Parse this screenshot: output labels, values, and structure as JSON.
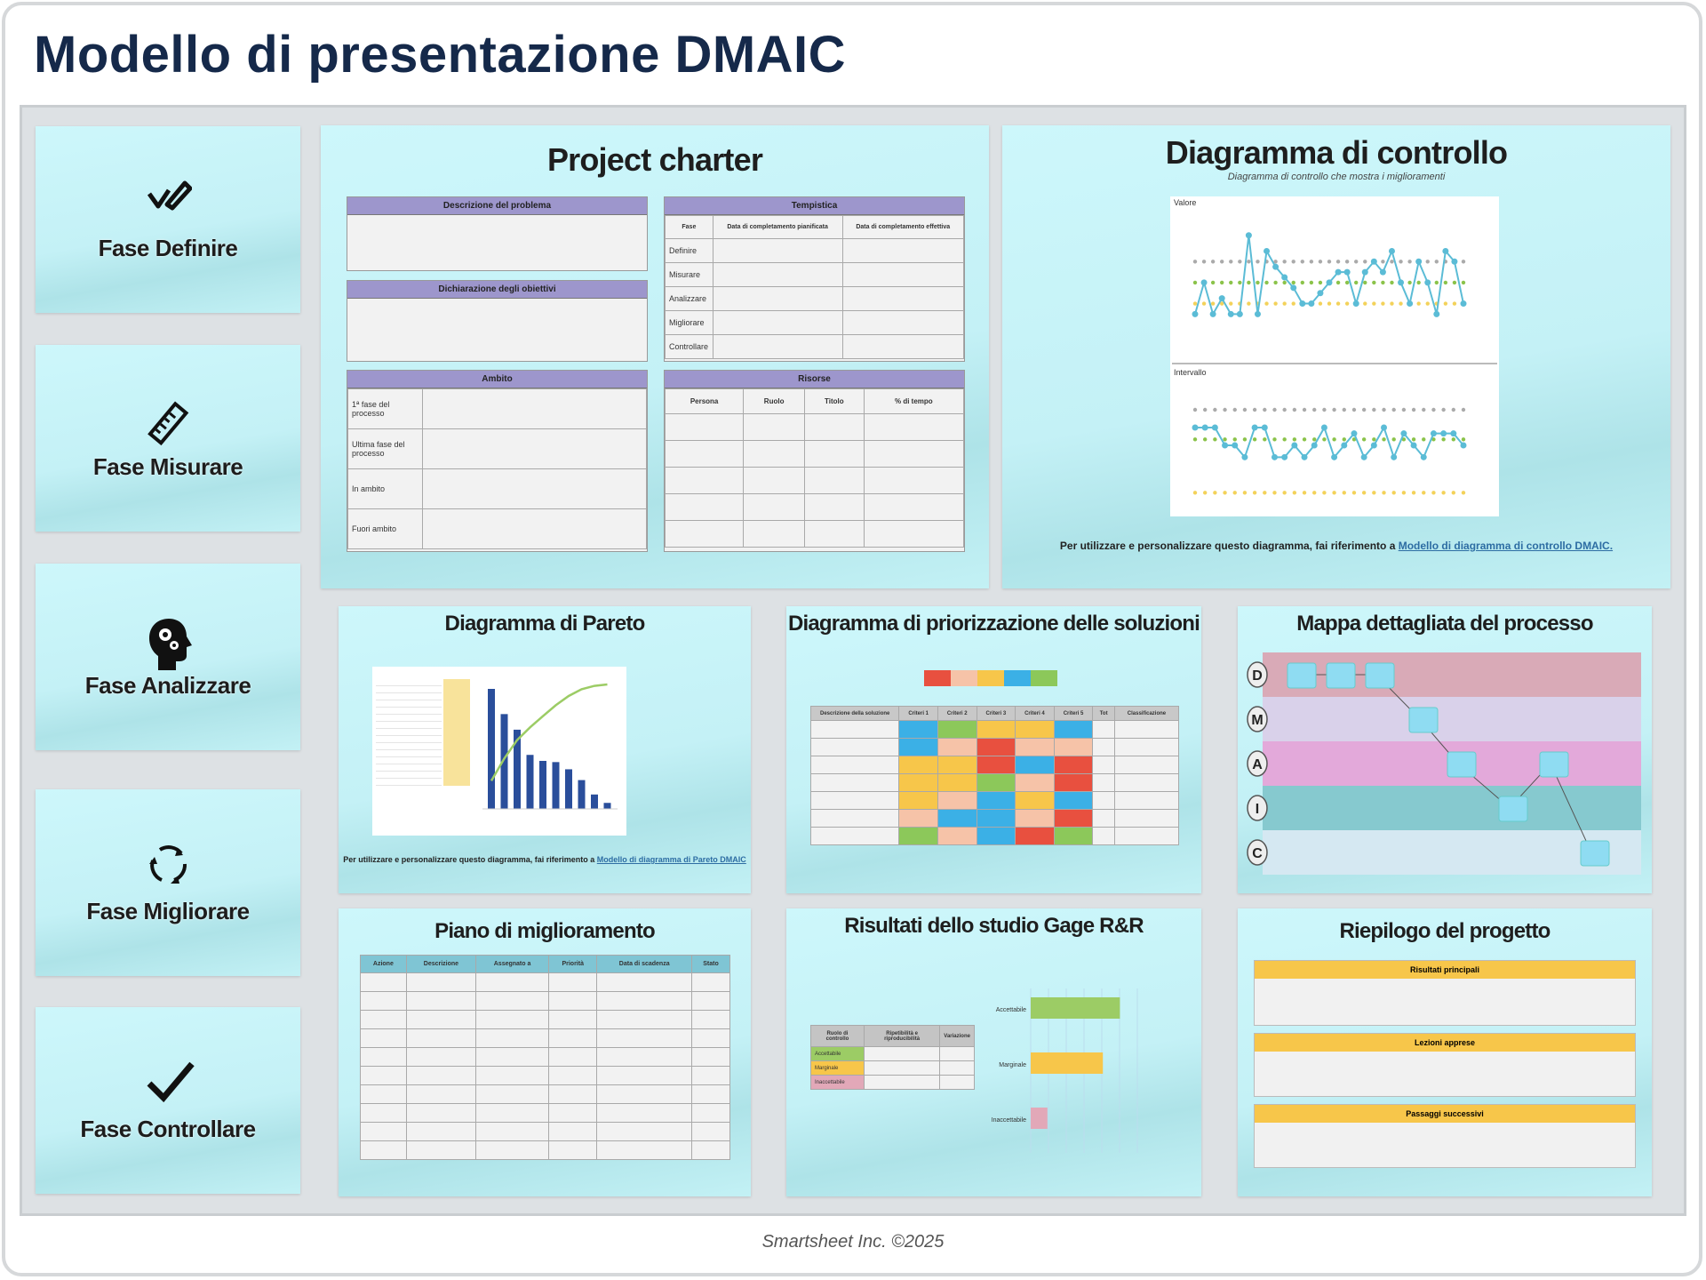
{
  "title": "Modello di presentazione DMAIC",
  "footer": "Smartsheet Inc. ©2025",
  "phases": [
    {
      "label": "Fase Definire",
      "icon": "pen-signature-icon"
    },
    {
      "label": "Fase Misurare",
      "icon": "ruler-icon"
    },
    {
      "label": "Fase Analizzare",
      "icon": "head-gears-icon"
    },
    {
      "label": "Fase Migliorare",
      "icon": "cycle-arrows-icon"
    },
    {
      "label": "Fase Controllare",
      "icon": "checkmark-icon"
    }
  ],
  "charter": {
    "title": "Project charter",
    "problem": "Descrizione del problema",
    "goals": "Dichiarazione degli obiettivi",
    "scope": {
      "header": "Ambito",
      "rows": [
        "1ª fase del processo",
        "Ultima fase del processo",
        "In ambito",
        "Fuori ambito"
      ]
    },
    "timeline": {
      "header": "Tempistica",
      "cols": [
        "Fase",
        "Data di completamento pianificata",
        "Data di completamento effettiva"
      ],
      "rows": [
        "Definire",
        "Misurare",
        "Analizzare",
        "Migliorare",
        "Controllare"
      ]
    },
    "team": {
      "header": "Risorse",
      "cols": [
        "Persona",
        "Ruolo",
        "Titolo",
        "% di tempo"
      ]
    }
  },
  "control": {
    "title": "Diagramma di controllo",
    "subtitle": "Diagramma di controllo che mostra i miglioramenti",
    "chart1_label": "Valore",
    "chart2_label": "Intervallo",
    "note": "Per utilizzare e personalizzare questo diagramma, fai riferimento a ",
    "link": "Modello di diagramma di controllo DMAIC."
  },
  "pareto": {
    "title": "Diagramma di Pareto",
    "note": "Per utilizzare e personalizzare questo diagramma, fai riferimento a ",
    "link": "Modello di diagramma di Pareto DMAIC"
  },
  "prioritization": {
    "title": "Diagramma di priorizzazione delle soluzioni",
    "cols": [
      "Descrizione della soluzione",
      "Criteri 1",
      "Criteri 2",
      "Criteri 3",
      "Criteri 4",
      "Criteri 5",
      "Tot",
      "Classificazione"
    ]
  },
  "process_map": {
    "title": "Mappa dettagliata del processo",
    "lanes": [
      "D",
      "M",
      "A",
      "I",
      "C"
    ]
  },
  "improvement": {
    "title": "Piano di miglioramento",
    "cols": [
      "Azione",
      "Descrizione",
      "Assegnato a",
      "Priorità",
      "Data di scadenza",
      "Stato"
    ]
  },
  "gage": {
    "title": "Risultati dello studio Gage R&R",
    "table_cols": [
      "Ruolo di controllo",
      "Ripetibilità e riproducibilità",
      "Variazione"
    ],
    "rows": [
      "Accettabile",
      "Marginale",
      "Inaccettabile"
    ]
  },
  "summary": {
    "title": "Riepilogo del progetto",
    "sections": [
      "Risultati principali",
      "Lezioni apprese",
      "Passaggi successivi"
    ]
  },
  "colors": {
    "title": "#15294a",
    "purple_header": "#9d96cc",
    "yellow_header": "#f7c64a",
    "chart_line": "#5bbcd6",
    "bar": "#2a4e9b"
  },
  "chart_data": [
    {
      "type": "line",
      "series": [
        {
          "values": [
            2,
            5,
            2,
            3.5,
            2,
            2,
            9.5,
            2,
            8,
            6.5,
            5.5,
            4.5,
            3,
            3,
            4,
            5,
            6,
            6,
            3,
            6,
            7,
            6,
            8,
            5,
            3,
            7,
            5,
            2,
            8,
            7,
            3
          ]
        }
      ],
      "limits": {
        "ucl": 7,
        "cl": 5,
        "lcl": 3
      },
      "ylim": [
        0,
        11
      ]
    },
    {
      "type": "line",
      "series": [
        {
          "values": [
            6,
            6,
            6,
            4.5,
            4.5,
            3.5,
            6,
            6,
            3.5,
            3.5,
            4.5,
            3.5,
            4.5,
            6,
            3.5,
            4.5,
            5.5,
            3.5,
            4.5,
            6,
            3.5,
            5.5,
            4.5,
            3.5,
            5.5,
            5.5,
            5.5,
            4.5
          ]
        }
      ],
      "limits": {
        "ucl": 7.5,
        "cl": 5,
        "lcl": 0.5
      },
      "ylim": [
        0,
        9
      ]
    },
    {
      "type": "bar",
      "values": [
        100,
        79,
        66,
        45,
        40,
        39,
        33,
        24,
        12,
        5
      ],
      "cumulative": true
    },
    {
      "type": "heatmap",
      "legend": [
        "#e8503f",
        "#f6c3a8",
        "#f7c64a",
        "#3bb0e6",
        "#8cc85a"
      ],
      "cells": [
        [
          3,
          4,
          2,
          2,
          3
        ],
        [
          3,
          1,
          0,
          1,
          1
        ],
        [
          2,
          2,
          0,
          3,
          0
        ],
        [
          2,
          2,
          4,
          1,
          0
        ],
        [
          2,
          1,
          3,
          2,
          3
        ],
        [
          1,
          3,
          3,
          1,
          0
        ],
        [
          4,
          1,
          3,
          0,
          4
        ]
      ]
    },
    {
      "type": "bar",
      "orientation": "horizontal",
      "values": [
        0.82,
        0.66,
        0.14
      ],
      "colors": [
        "#9ccc65",
        "#f7c64a",
        "#e2a8b8"
      ]
    }
  ]
}
